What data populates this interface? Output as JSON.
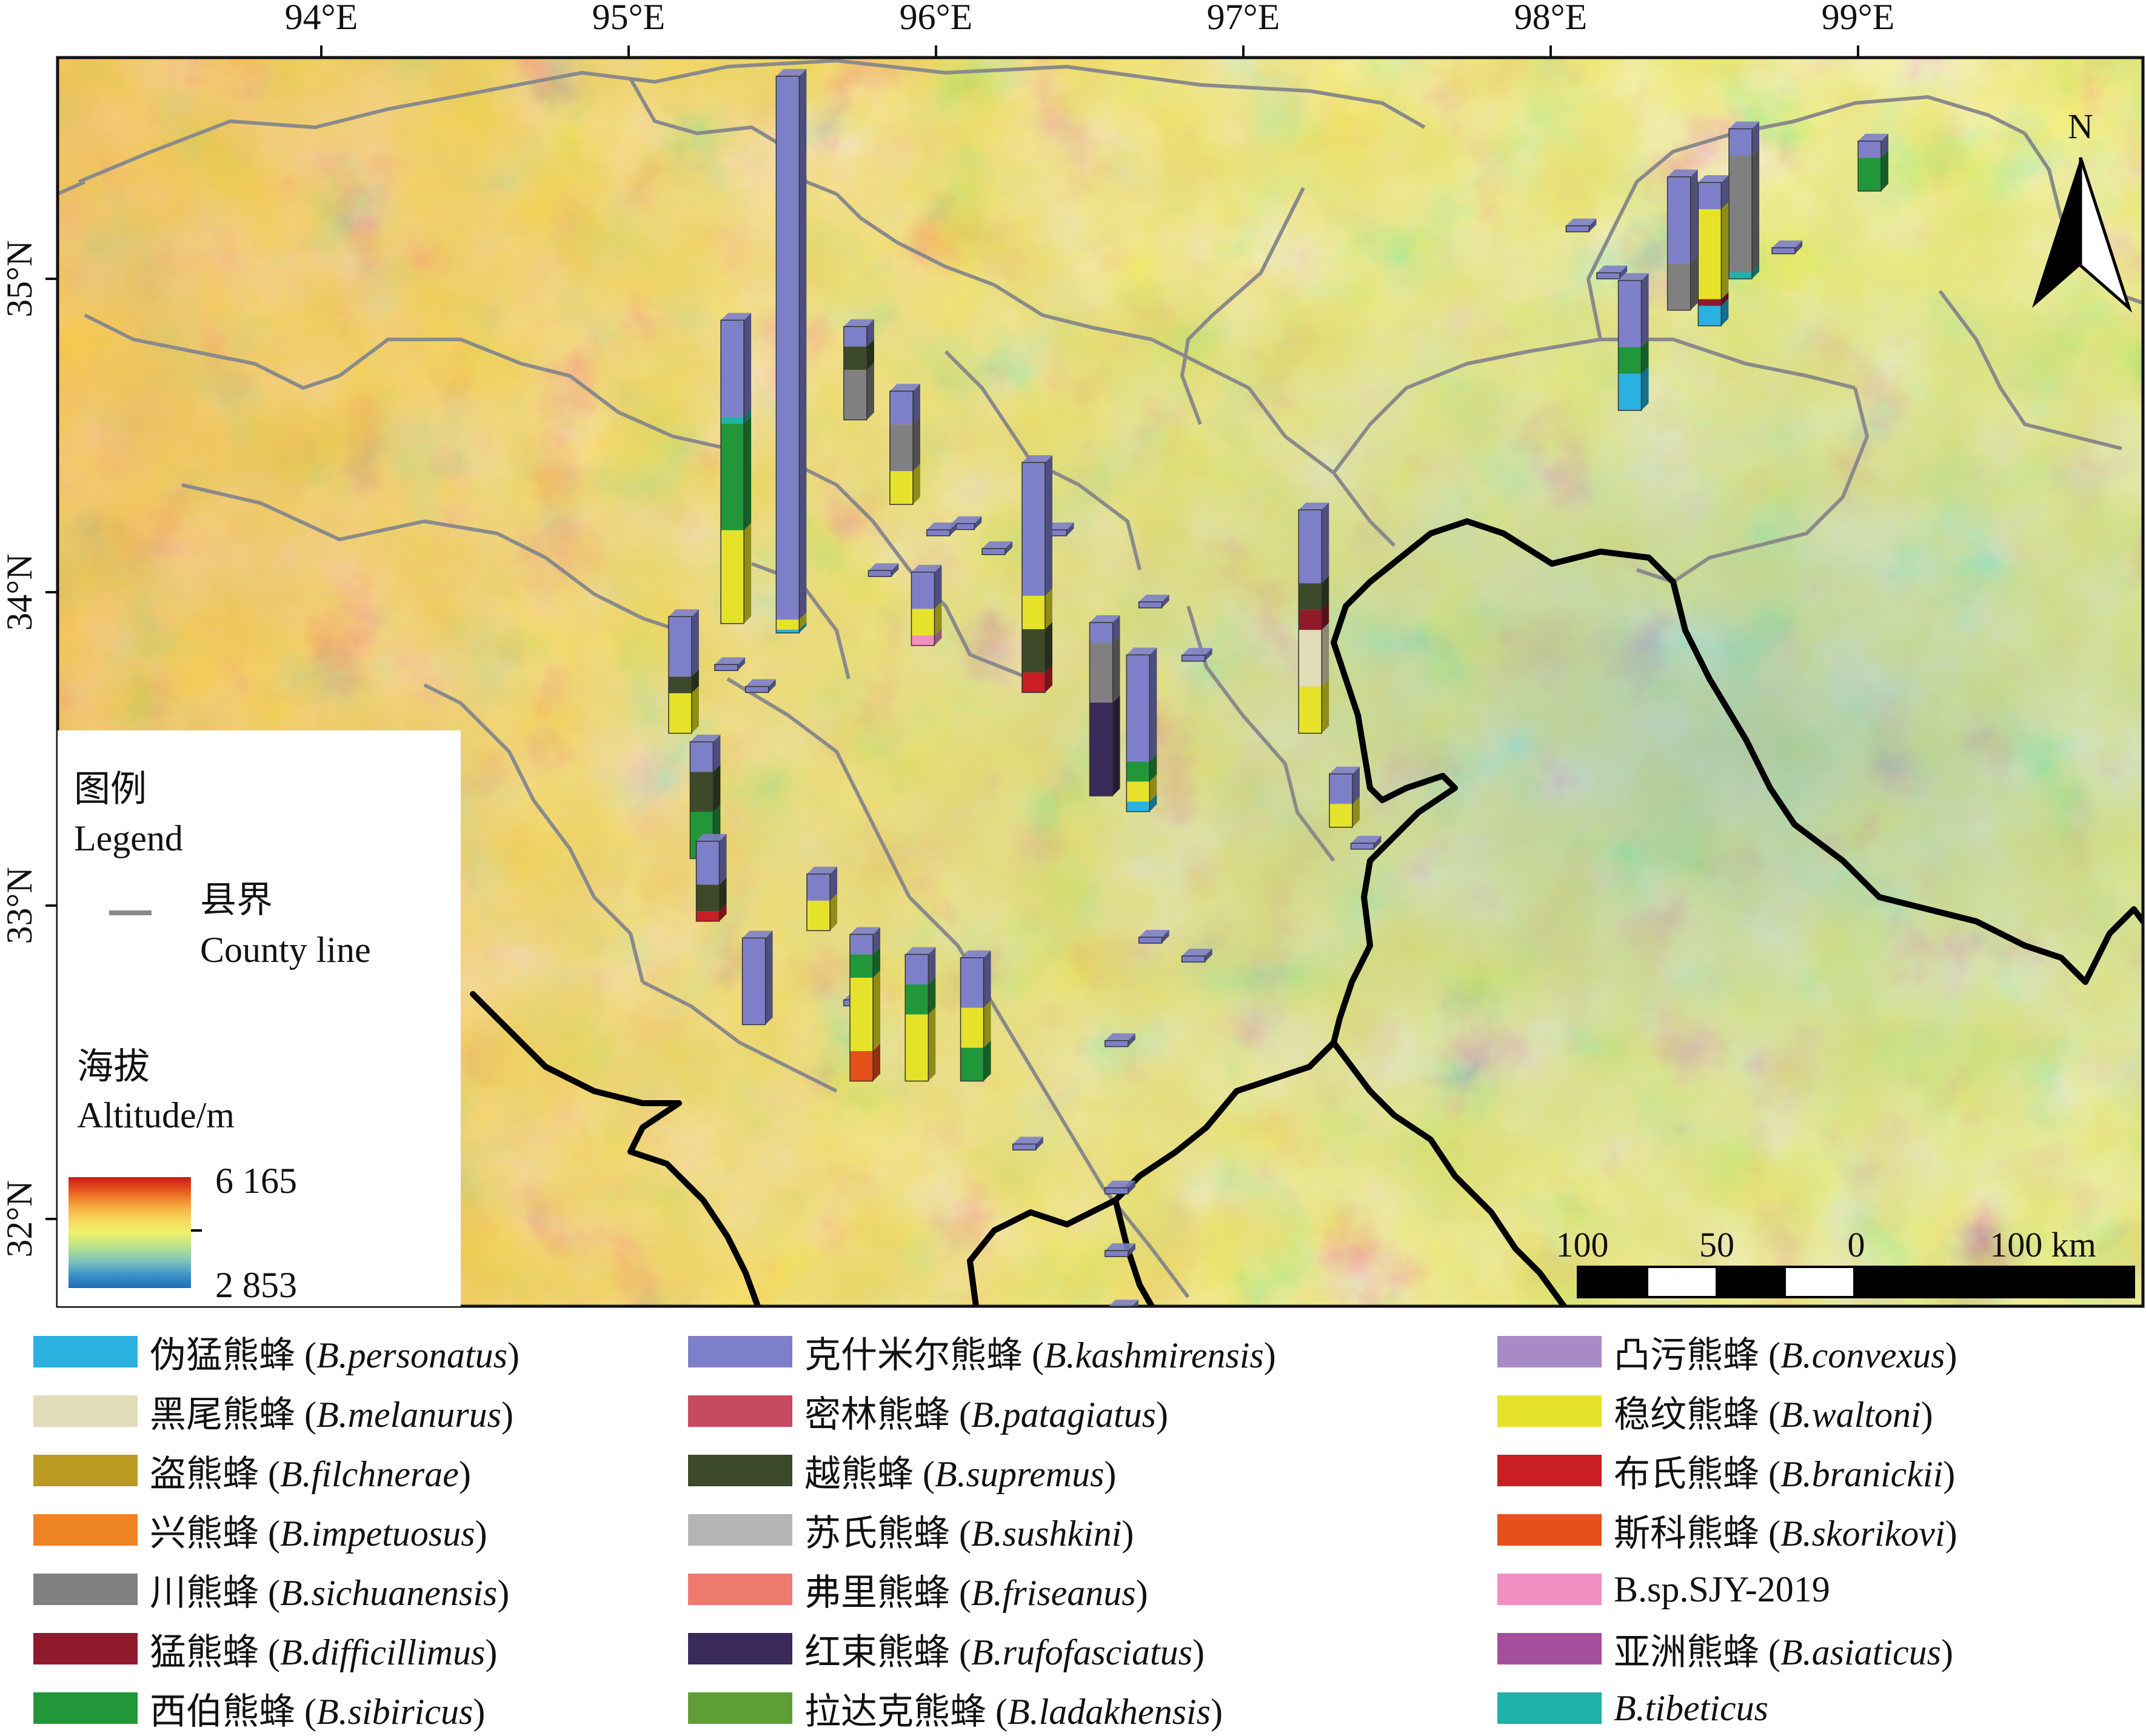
{
  "lon_labels": [
    "94°E",
    "95°E",
    "96°E",
    "97°E",
    "98°E",
    "99°E"
  ],
  "lat_labels": [
    "35°N",
    "34°N",
    "33°N",
    "32°N"
  ],
  "north_arrow": {
    "label": "N",
    "icon": "north-arrow-icon"
  },
  "scale_bar": {
    "labels": [
      "100",
      "50",
      "0",
      "100 km"
    ]
  },
  "map_legend": {
    "title_cn": "图例",
    "title_en": "Legend",
    "county_cn": "县界",
    "county_en": "County line",
    "county_color": "#8a8a8a",
    "altitude_cn": "海拔",
    "altitude_en": "Altitude/m",
    "alt_max": "6 165",
    "alt_min": "2 853"
  },
  "ramp_colors": [
    "#c81a1a",
    "#ea5a1e",
    "#f5a33a",
    "#f7d65a",
    "#eef06a",
    "#bde28a",
    "#7fc6b8",
    "#3f95c8",
    "#1d6cb8"
  ],
  "species": [
    {
      "cn": "伪猛熊蜂",
      "lat": "B.personatus",
      "color": "#29b1e0"
    },
    {
      "cn": "黑尾熊蜂",
      "lat": "B.melanurus",
      "color": "#e2dcb8"
    },
    {
      "cn": "盗熊蜂",
      "lat": "B.filchnerae",
      "color": "#bb9a22"
    },
    {
      "cn": "兴熊蜂",
      "lat": "B.impetuosus",
      "color": "#ee8325"
    },
    {
      "cn": "川熊蜂",
      "lat": "B.sichuanensis",
      "color": "#808080"
    },
    {
      "cn": "猛熊蜂",
      "lat": "B.difficillimus",
      "color": "#8e1a2c"
    },
    {
      "cn": "西伯熊蜂",
      "lat": "B.sibiricus",
      "color": "#22973a"
    },
    {
      "cn": "克什米尔熊蜂",
      "lat": "B.kashmirensis",
      "color": "#7d80c8"
    },
    {
      "cn": "密林熊蜂",
      "lat": "B.patagiatus",
      "color": "#c64a60"
    },
    {
      "cn": "越熊蜂",
      "lat": "B.supremus",
      "color": "#3c4a2a"
    },
    {
      "cn": "苏氏熊蜂",
      "lat": "B.sushkini",
      "color": "#b4b4b4"
    },
    {
      "cn": "弗里熊蜂",
      "lat": "B.friseanus",
      "color": "#ee7a70"
    },
    {
      "cn": "红束熊蜂",
      "lat": "B.rufofasciatus",
      "color": "#3a2a5a"
    },
    {
      "cn": "拉达克熊蜂",
      "lat": "B.ladakhensis",
      "color": "#5f9e35"
    },
    {
      "cn": "凸污熊蜂",
      "lat": "B.convexus",
      "color": "#a88ac6"
    },
    {
      "cn": "稳纹熊蜂",
      "lat": "B.waltoni",
      "color": "#e6e22a"
    },
    {
      "cn": "布氏熊蜂",
      "lat": "B.branickii",
      "color": "#c81e24"
    },
    {
      "cn": "斯科熊蜂",
      "lat": "B.skorikovi",
      "color": "#e6501a"
    },
    {
      "cn": "",
      "lat": "B.sp.SJY-2019",
      "color": "#ef8fc2"
    },
    {
      "cn": "亚洲熊蜂",
      "lat": "B.asiaticus",
      "color": "#a44f9c"
    },
    {
      "cn": "",
      "lat": "B.tibeticus",
      "color": "#1eb2a8"
    }
  ],
  "sites": [
    {
      "lon": 95.48,
      "lat": 33.87,
      "stack": [
        {
          "sp": "B.personatus",
          "h": 0.1
        },
        {
          "sp": "B.waltoni",
          "h": 0.3
        },
        {
          "sp": "B.kashmirensis",
          "h": 16.3
        }
      ]
    },
    {
      "lon": 95.3,
      "lat": 33.9,
      "stack": [
        {
          "sp": "B.waltoni",
          "h": 2.8
        },
        {
          "sp": "B.sibiricus",
          "h": 3.2
        },
        {
          "sp": "B.tibeticus",
          "h": 0.2
        },
        {
          "sp": "B.kashmirensis",
          "h": 2.9
        }
      ]
    },
    {
      "lon": 95.13,
      "lat": 33.55,
      "stack": [
        {
          "sp": "B.waltoni",
          "h": 1.2
        },
        {
          "sp": "B.supremus",
          "h": 0.5
        },
        {
          "sp": "B.kashmirensis",
          "h": 1.8
        }
      ]
    },
    {
      "lon": 95.2,
      "lat": 33.15,
      "stack": [
        {
          "sp": "B.sibiricus",
          "h": 1.4
        },
        {
          "sp": "B.supremus",
          "h": 1.2
        },
        {
          "sp": "B.kashmirensis",
          "h": 0.9
        }
      ]
    },
    {
      "lon": 95.22,
      "lat": 32.95,
      "stack": [
        {
          "sp": "B.branickii",
          "h": 0.3
        },
        {
          "sp": "B.supremus",
          "h": 0.8
        },
        {
          "sp": "B.kashmirensis",
          "h": 1.3
        }
      ]
    },
    {
      "lon": 95.37,
      "lat": 32.62,
      "stack": [
        {
          "sp": "B.kashmirensis",
          "h": 2.6
        }
      ]
    },
    {
      "lon": 95.58,
      "lat": 32.92,
      "stack": [
        {
          "sp": "B.waltoni",
          "h": 0.9
        },
        {
          "sp": "B.kashmirensis",
          "h": 0.8
        }
      ]
    },
    {
      "lon": 95.7,
      "lat": 34.55,
      "stack": [
        {
          "sp": "B.sichuanensis",
          "h": 1.5
        },
        {
          "sp": "B.supremus",
          "h": 0.7
        },
        {
          "sp": "B.kashmirensis",
          "h": 0.6
        }
      ]
    },
    {
      "lon": 95.85,
      "lat": 34.28,
      "stack": [
        {
          "sp": "B.waltoni",
          "h": 1.0
        },
        {
          "sp": "B.sichuanensis",
          "h": 1.4
        },
        {
          "sp": "B.kashmirensis",
          "h": 1.0
        }
      ]
    },
    {
      "lon": 95.92,
      "lat": 33.83,
      "stack": [
        {
          "sp": "B.sp.SJY-2019",
          "h": 0.3
        },
        {
          "sp": "B.waltoni",
          "h": 0.8
        },
        {
          "sp": "B.kashmirensis",
          "h": 1.1
        }
      ]
    },
    {
      "lon": 95.72,
      "lat": 32.44,
      "stack": [
        {
          "sp": "B.skorikovi",
          "h": 0.9
        },
        {
          "sp": "B.waltoni",
          "h": 2.2
        },
        {
          "sp": "B.sibiricus",
          "h": 0.7
        },
        {
          "sp": "B.kashmirensis",
          "h": 0.6
        }
      ]
    },
    {
      "lon": 95.9,
      "lat": 32.44,
      "stack": [
        {
          "sp": "B.waltoni",
          "h": 2.0
        },
        {
          "sp": "B.sibiricus",
          "h": 0.9
        },
        {
          "sp": "B.kashmirensis",
          "h": 0.9
        }
      ]
    },
    {
      "lon": 96.08,
      "lat": 32.44,
      "stack": [
        {
          "sp": "B.sibiricus",
          "h": 1.0
        },
        {
          "sp": "B.waltoni",
          "h": 1.2
        },
        {
          "sp": "B.kashmirensis",
          "h": 1.5
        }
      ]
    },
    {
      "lon": 96.28,
      "lat": 33.68,
      "stack": [
        {
          "sp": "B.branickii",
          "h": 0.6
        },
        {
          "sp": "B.supremus",
          "h": 1.3
        },
        {
          "sp": "B.waltoni",
          "h": 1.0
        },
        {
          "sp": "B.kashmirensis",
          "h": 4.0
        }
      ]
    },
    {
      "lon": 96.5,
      "lat": 33.35,
      "stack": [
        {
          "sp": "B.rufofasciatus",
          "h": 2.8
        },
        {
          "sp": "B.sichuanensis",
          "h": 1.8
        },
        {
          "sp": "B.kashmirensis",
          "h": 0.6
        }
      ]
    },
    {
      "lon": 96.62,
      "lat": 33.3,
      "stack": [
        {
          "sp": "B.personatus",
          "h": 0.3
        },
        {
          "sp": "B.waltoni",
          "h": 0.6
        },
        {
          "sp": "B.sibiricus",
          "h": 0.6
        },
        {
          "sp": "B.kashmirensis",
          "h": 3.2
        }
      ]
    },
    {
      "lon": 97.18,
      "lat": 33.55,
      "stack": [
        {
          "sp": "B.waltoni",
          "h": 1.4
        },
        {
          "sp": "B.melanurus",
          "h": 1.7
        },
        {
          "sp": "B.difficillimus",
          "h": 0.6
        },
        {
          "sp": "B.supremus",
          "h": 0.8
        },
        {
          "sp": "B.kashmirensis",
          "h": 2.2
        }
      ]
    },
    {
      "lon": 97.28,
      "lat": 33.25,
      "stack": [
        {
          "sp": "B.waltoni",
          "h": 0.7
        },
        {
          "sp": "B.kashmirensis",
          "h": 0.9
        }
      ]
    },
    {
      "lon": 98.22,
      "lat": 34.58,
      "stack": [
        {
          "sp": "B.personatus",
          "h": 1.1
        },
        {
          "sp": "B.sibiricus",
          "h": 0.8
        },
        {
          "sp": "B.kashmirensis",
          "h": 2.0
        }
      ]
    },
    {
      "lon": 98.38,
      "lat": 34.9,
      "stack": [
        {
          "sp": "B.sichuanensis",
          "h": 1.4
        },
        {
          "sp": "B.kashmirensis",
          "h": 2.6
        }
      ]
    },
    {
      "lon": 98.48,
      "lat": 34.85,
      "stack": [
        {
          "sp": "B.personatus",
          "h": 0.6
        },
        {
          "sp": "B.difficillimus",
          "h": 0.2
        },
        {
          "sp": "B.waltoni",
          "h": 2.7
        },
        {
          "sp": "B.kashmirensis",
          "h": 0.8
        }
      ]
    },
    {
      "lon": 98.58,
      "lat": 35.0,
      "stack": [
        {
          "sp": "B.tibeticus",
          "h": 0.2
        },
        {
          "sp": "B.sichuanensis",
          "h": 3.5
        },
        {
          "sp": "B.kashmirensis",
          "h": 0.8
        }
      ]
    },
    {
      "lon": 99.0,
      "lat": 35.28,
      "stack": [
        {
          "sp": "B.sibiricus",
          "h": 1.0
        },
        {
          "sp": "B.kashmirensis",
          "h": 0.5
        }
      ]
    }
  ],
  "small_boxes": [
    {
      "lon": 95.28,
      "lat": 33.75
    },
    {
      "lon": 95.38,
      "lat": 33.68
    },
    {
      "lon": 95.78,
      "lat": 34.05
    },
    {
      "lon": 96.05,
      "lat": 34.2
    },
    {
      "lon": 96.15,
      "lat": 34.12
    },
    {
      "lon": 96.35,
      "lat": 34.18
    },
    {
      "lon": 96.66,
      "lat": 33.95
    },
    {
      "lon": 96.8,
      "lat": 33.78
    },
    {
      "lon": 95.7,
      "lat": 32.68
    },
    {
      "lon": 96.66,
      "lat": 32.88
    },
    {
      "lon": 96.8,
      "lat": 32.82
    },
    {
      "lon": 96.55,
      "lat": 32.55
    },
    {
      "lon": 96.25,
      "lat": 32.22
    },
    {
      "lon": 96.55,
      "lat": 32.08
    },
    {
      "lon": 96.55,
      "lat": 31.88
    },
    {
      "lon": 96.56,
      "lat": 31.7
    },
    {
      "lon": 97.35,
      "lat": 33.18
    },
    {
      "lon": 98.05,
      "lat": 35.15
    },
    {
      "lon": 98.15,
      "lat": 35.0
    },
    {
      "lon": 98.72,
      "lat": 35.08
    },
    {
      "lon": 95.97,
      "lat": 34.18
    }
  ]
}
